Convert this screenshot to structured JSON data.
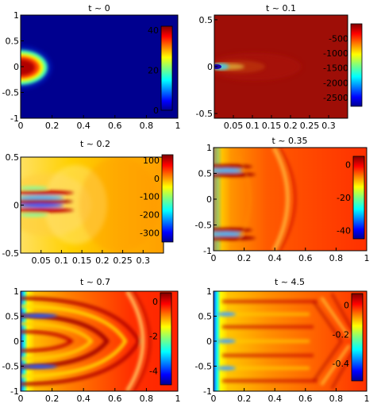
{
  "figure": {
    "panels": [
      {
        "id": "p1",
        "title": "t ~ 0",
        "xticks": [
          "0",
          "0.2",
          "0.4",
          "0.6",
          "0.8",
          "1"
        ],
        "yticks": [
          "1",
          "0.5",
          "0",
          "-0.5",
          "-1"
        ],
        "cticks": [
          "40",
          "20",
          "0"
        ]
      },
      {
        "id": "p2",
        "title": "t ~ 0.1",
        "xticks": [
          "0.05",
          "0.1",
          "0.15",
          "0.2",
          "0.25",
          "0.3"
        ],
        "yticks": [
          "0.5",
          "0",
          "-0.5"
        ],
        "cticks": [
          "-500",
          "-1000",
          "-1500",
          "-2000",
          "-2500"
        ]
      },
      {
        "id": "p3",
        "title": "t ~ 0.2",
        "xticks": [
          "0.05",
          "0.1",
          "0.15",
          "0.2",
          "0.25",
          "0.3"
        ],
        "yticks": [
          "0.5",
          "0",
          "-0.5"
        ],
        "cticks": [
          "100",
          "0",
          "-100",
          "-200",
          "-300"
        ]
      },
      {
        "id": "p4",
        "title": "t ~ 0.35",
        "xticks": [
          "0",
          "0.2",
          "0.4",
          "0.6",
          "0.8",
          "1"
        ],
        "yticks": [
          "1",
          "0.5",
          "0",
          "-0.5",
          "-1"
        ],
        "cticks": [
          "0",
          "-20",
          "-40"
        ]
      },
      {
        "id": "p5",
        "title": "t ~ 0.7",
        "xticks": [
          "0",
          "0.2",
          "0.4",
          "0.6",
          "0.8",
          "1"
        ],
        "yticks": [
          "1",
          "0.5",
          "0",
          "-0.5",
          "-1"
        ],
        "cticks": [
          "0",
          "-2",
          "-4"
        ]
      },
      {
        "id": "p6",
        "title": "t ~ 4.5",
        "xticks": [
          "0",
          "0.2",
          "0.4",
          "0.6",
          "0.8",
          "1"
        ],
        "yticks": [
          "1",
          "0.5",
          "0",
          "-0.5",
          "-1"
        ],
        "cticks": [
          "0",
          "-0.2",
          "-0.4"
        ]
      }
    ]
  },
  "chart_data": [
    {
      "type": "heatmap",
      "title": "t ~ 0",
      "xlabel": "",
      "ylabel": "",
      "xlim": [
        0,
        1
      ],
      "ylim": [
        -1,
        1
      ],
      "clim": [
        0,
        42
      ],
      "xticks": [
        0,
        0.2,
        0.4,
        0.6,
        0.8,
        1
      ],
      "yticks": [
        -1,
        -0.5,
        0,
        0.5,
        1
      ],
      "colorbar_ticks": [
        0,
        20,
        40
      ],
      "colormap": "jet",
      "features": [
        "hot lobe centred at (0, 0) extending to about x = 0.2, |y| < 0.3"
      ]
    },
    {
      "type": "heatmap",
      "title": "t ~ 0.1",
      "xlabel": "",
      "ylabel": "",
      "xlim": [
        0,
        0.35
      ],
      "ylim": [
        -0.55,
        0.55
      ],
      "clim": [
        -2800,
        0
      ],
      "xticks": [
        0.05,
        0.1,
        0.15,
        0.2,
        0.25,
        0.3
      ],
      "yticks": [
        -0.5,
        0,
        0.5
      ],
      "colorbar_ticks": [
        -2500,
        -2000,
        -1500,
        -1000,
        -500
      ],
      "colormap": "jet",
      "features": [
        "narrow cold jet along y = 0 near x = 0",
        "fading plume to about x = 0.15"
      ]
    },
    {
      "type": "heatmap",
      "title": "t ~ 0.2",
      "xlabel": "",
      "ylabel": "",
      "xlim": [
        0,
        0.35
      ],
      "ylim": [
        -0.5,
        0.5
      ],
      "clim": [
        -350,
        130
      ],
      "xticks": [
        0.05,
        0.1,
        0.15,
        0.2,
        0.25,
        0.3
      ],
      "yticks": [
        -0.5,
        0,
        0.5
      ],
      "colorbar_ticks": [
        -300,
        -200,
        -100,
        0,
        100
      ],
      "colormap": "jet",
      "features": [
        "alternating hot and cold streaks near y = 0 out to x = 0.12",
        "warm yellow background"
      ]
    },
    {
      "type": "heatmap",
      "title": "t ~ 0.35",
      "xlabel": "",
      "ylabel": "",
      "xlim": [
        0,
        1
      ],
      "ylim": [
        -1,
        1
      ],
      "clim": [
        -45,
        5
      ],
      "xticks": [
        0,
        0.2,
        0.4,
        0.6,
        0.8,
        1
      ],
      "yticks": [
        -1,
        -0.5,
        0,
        0.5,
        1
      ],
      "colorbar_ticks": [
        -40,
        -20,
        0
      ],
      "colormap": "jet",
      "features": [
        "streaks near y = 0.7 and y = -0.7",
        "curved wave front near x = 0.4"
      ]
    },
    {
      "type": "heatmap",
      "title": "t ~ 0.7",
      "xlabel": "",
      "ylabel": "",
      "xlim": [
        0,
        1
      ],
      "ylim": [
        -1,
        1
      ],
      "clim": [
        -4.8,
        0.5
      ],
      "xticks": [
        0,
        0.2,
        0.4,
        0.6,
        0.8,
        1
      ],
      "yticks": [
        -1,
        -0.5,
        0,
        0.5,
        1
      ],
      "colorbar_ticks": [
        -4,
        -2,
        0
      ],
      "colormap": "jet",
      "features": [
        "nested arc pattern centred near x = 0.5",
        "cold boundary layer at x = 0"
      ]
    },
    {
      "type": "heatmap",
      "title": "t ~ 4.5",
      "xlabel": "",
      "ylabel": "",
      "xlim": [
        0,
        1
      ],
      "ylim": [
        -1,
        1
      ],
      "clim": [
        -0.52,
        0.08
      ],
      "xticks": [
        0,
        0.2,
        0.4,
        0.6,
        0.8,
        1
      ],
      "yticks": [
        -1,
        -0.5,
        0,
        0.5,
        1
      ],
      "colorbar_ticks": [
        -0.4,
        -0.2,
        0
      ],
      "colormap": "jet",
      "features": [
        "horizontal bands across the domain",
        "diagonal crossing pattern near x = 0.7-0.85",
        "cold boundary layer at x = 0"
      ]
    }
  ]
}
